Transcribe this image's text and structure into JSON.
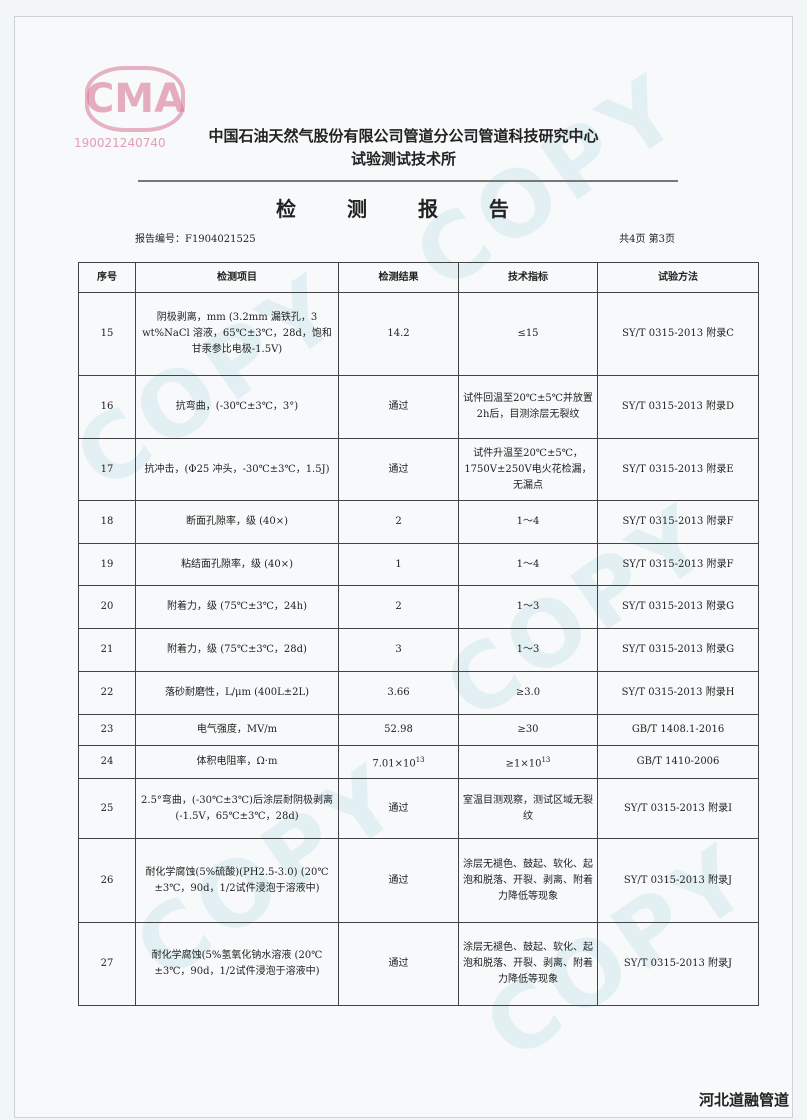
{
  "stamp": {
    "logo": "CMA",
    "number": "190021240740"
  },
  "watermark": "COPY",
  "org_line1": "中国石油天然气股份有限公司管道分公司管道科技研究中心",
  "org_line2": "试验测试技术所",
  "doc_title": "检 测 报 告",
  "report_no": "报告编号：F1904021525",
  "page_info": "共4页  第3页",
  "table": {
    "headers": [
      "序号",
      "检测项目",
      "检测结果",
      "技术指标",
      "试验方法"
    ],
    "rows": [
      {
        "no": "15",
        "item": "阴极剥离，mm (3.2mm 漏铁孔，3 wt%NaCl 溶液，65℃±3℃，28d，饱和甘汞参比电极-1.5V)",
        "result": "14.2",
        "spec": "≤15",
        "method": "SY/T 0315-2013 附录C"
      },
      {
        "no": "16",
        "item": "抗弯曲，(-30℃±3℃，3°)",
        "result": "通过",
        "spec": "试件回温至20℃±5℃并放置2h后，目测涂层无裂纹",
        "method": "SY/T 0315-2013 附录D"
      },
      {
        "no": "17",
        "item": "抗冲击，(Φ25 冲头，-30℃±3℃，1.5J)",
        "result": "通过",
        "spec": "试件升温至20℃±5℃，1750V±250V电火花检漏，无漏点",
        "method": "SY/T 0315-2013 附录E"
      },
      {
        "no": "18",
        "item": "断面孔隙率，级 (40×)",
        "result": "2",
        "spec": "1～4",
        "method": "SY/T 0315-2013 附录F"
      },
      {
        "no": "19",
        "item": "粘结面孔隙率，级 (40×)",
        "result": "1",
        "spec": "1～4",
        "method": "SY/T 0315-2013 附录F"
      },
      {
        "no": "20",
        "item": "附着力，级 (75℃±3℃，24h)",
        "result": "2",
        "spec": "1～3",
        "method": "SY/T 0315-2013 附录G"
      },
      {
        "no": "21",
        "item": "附着力，级 (75℃±3℃，28d)",
        "result": "3",
        "spec": "1～3",
        "method": "SY/T 0315-2013 附录G"
      },
      {
        "no": "22",
        "item": "落砂耐磨性，L/μm (400L±2L)",
        "result": "3.66",
        "spec": "≥3.0",
        "method": "SY/T 0315-2013 附录H"
      },
      {
        "no": "23",
        "item": "电气强度，MV/m",
        "result": "52.98",
        "spec": "≥30",
        "method": "GB/T 1408.1-2016"
      },
      {
        "no": "24",
        "item": "体积电阻率，Ω·m",
        "result": "7.01×10",
        "result_exp": "13",
        "spec": "≥1×10",
        "spec_exp": "13",
        "method": "GB/T 1410-2006"
      },
      {
        "no": "25",
        "item": "2.5°弯曲，(-30℃±3℃)后涂层耐阴极剥离 (-1.5V，65℃±3℃，28d)",
        "result": "通过",
        "spec": "室温目测观察，测试区域无裂纹",
        "method": "SY/T 0315-2013 附录I"
      },
      {
        "no": "26",
        "item": "耐化学腐蚀(5%硫酸)(PH2.5-3.0) (20℃±3℃，90d，1/2试件浸泡于溶液中)",
        "result": "通过",
        "spec": "涂层无褪色、鼓起、软化、起泡和脱落、开裂、剥离、附着力降低等现象",
        "method": "SY/T 0315-2013 附录J"
      },
      {
        "no": "27",
        "item": "耐化学腐蚀(5%氢氧化钠水溶液 (20℃±3℃，90d，1/2试件浸泡于溶液中)",
        "result": "通过",
        "spec": "涂层无褪色、鼓起、软化、起泡和脱落、开裂、剥离、附着力降低等现象",
        "method": "SY/T 0315-2013 附录J"
      }
    ]
  },
  "footer": "河北道融管道"
}
